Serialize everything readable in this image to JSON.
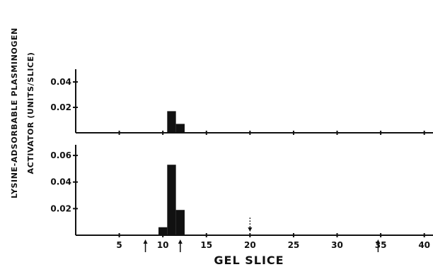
{
  "chart_data": {
    "type": "bar",
    "xlabel": "GEL SLICE",
    "ylabel_lines": [
      "LYSINE-ADSORBABLE PLASMINOGEN",
      "ACTIVATOR (UNITS/SLICE)"
    ],
    "xlim": [
      0,
      41
    ],
    "xticks": [
      5,
      10,
      15,
      20,
      25,
      30,
      35,
      40
    ],
    "bottom_markers": [
      8,
      12,
      34.7
    ],
    "panels": [
      {
        "id": "top",
        "ylim": [
          0,
          0.05
        ],
        "yticks": [
          0.02,
          0.04
        ],
        "ytick_labels": [
          "0.02",
          "0.04"
        ],
        "series": [
          {
            "x": [
              11,
              12
            ],
            "values": [
              0.017,
              0.007
            ]
          }
        ]
      },
      {
        "id": "bottom",
        "ylim": [
          0,
          0.068
        ],
        "yticks": [
          0.02,
          0.04,
          0.06
        ],
        "ytick_labels": [
          "0.02",
          "0.04",
          "0.06"
        ],
        "series": [
          {
            "x": [
              10,
              11,
              12
            ],
            "values": [
              0.006,
              0.053,
              0.019
            ]
          }
        ],
        "dashed_marker_x": 20
      }
    ]
  }
}
